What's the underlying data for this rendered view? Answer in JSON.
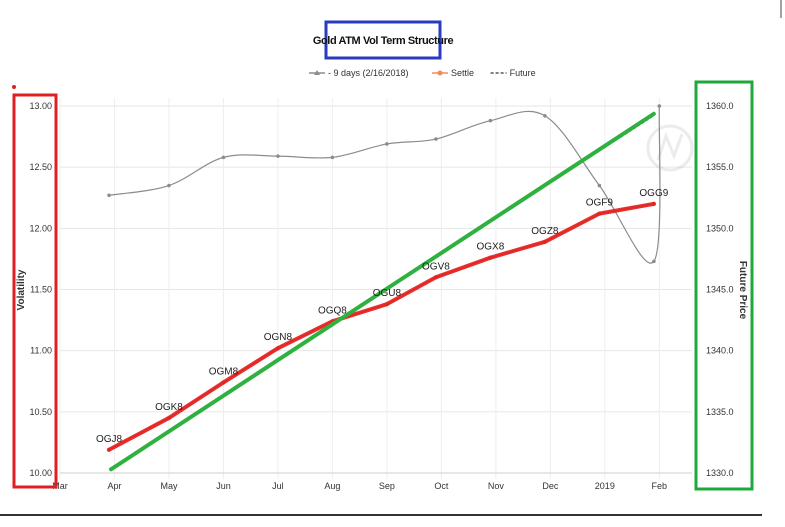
{
  "chart_data": {
    "type": "line",
    "title": "Gold ATM Vol Term Structure",
    "ylabel": "Volatility",
    "y2label": "Future Price",
    "x_ticks": [
      "Mar",
      "Apr",
      "May",
      "Jun",
      "Jul",
      "Aug",
      "Sep",
      "Oct",
      "Nov",
      "Dec",
      "2019",
      "Feb"
    ],
    "y_ticks": [
      "10.00",
      "10.50",
      "11.00",
      "11.50",
      "12.00",
      "12.50",
      "13.00"
    ],
    "y2_ticks": [
      "1330.0",
      "1335.0",
      "1340.0",
      "1345.0",
      "1350.0",
      "1355.0",
      "1360.0"
    ],
    "ylim": [
      10.0,
      13.0
    ],
    "y2lim": [
      1330.0,
      1360.0
    ],
    "legend_position": "top",
    "series": [
      {
        "name": "- 9 days (2/16/2018)",
        "axis": "left",
        "color": "#8c8c8c",
        "x": [
          0.9,
          2.0,
          3.0,
          4.0,
          5.0,
          6.0,
          6.9,
          7.9,
          8.9,
          9.9,
          10.9
        ],
        "values": [
          12.27,
          12.35,
          12.58,
          12.59,
          12.58,
          12.69,
          12.73,
          12.88,
          12.92,
          12.35,
          11.73
        ]
      },
      {
        "name": "Settle",
        "axis": "left",
        "color": "#f08c5a",
        "x": [
          0.9,
          2.0,
          3.0,
          4.0,
          5.0,
          6.0,
          6.9,
          7.9,
          8.9,
          9.9,
          10.9
        ],
        "values": [
          10.19,
          10.45,
          10.74,
          11.02,
          11.24,
          11.38,
          11.6,
          11.76,
          11.89,
          12.12,
          12.2
        ],
        "labels": [
          "OGJ8",
          "OGK8",
          "OGM8",
          "OGN8",
          "OGQ8",
          "OGU8",
          "OGV8",
          "OGX8",
          "OGZ8",
          "OGF9",
          "OGG9"
        ]
      },
      {
        "name": "Future",
        "axis": "right",
        "color": "#555555",
        "x": [
          0.9,
          10.9
        ],
        "values": [
          1330.3,
          1359.2
        ]
      }
    ]
  }
}
